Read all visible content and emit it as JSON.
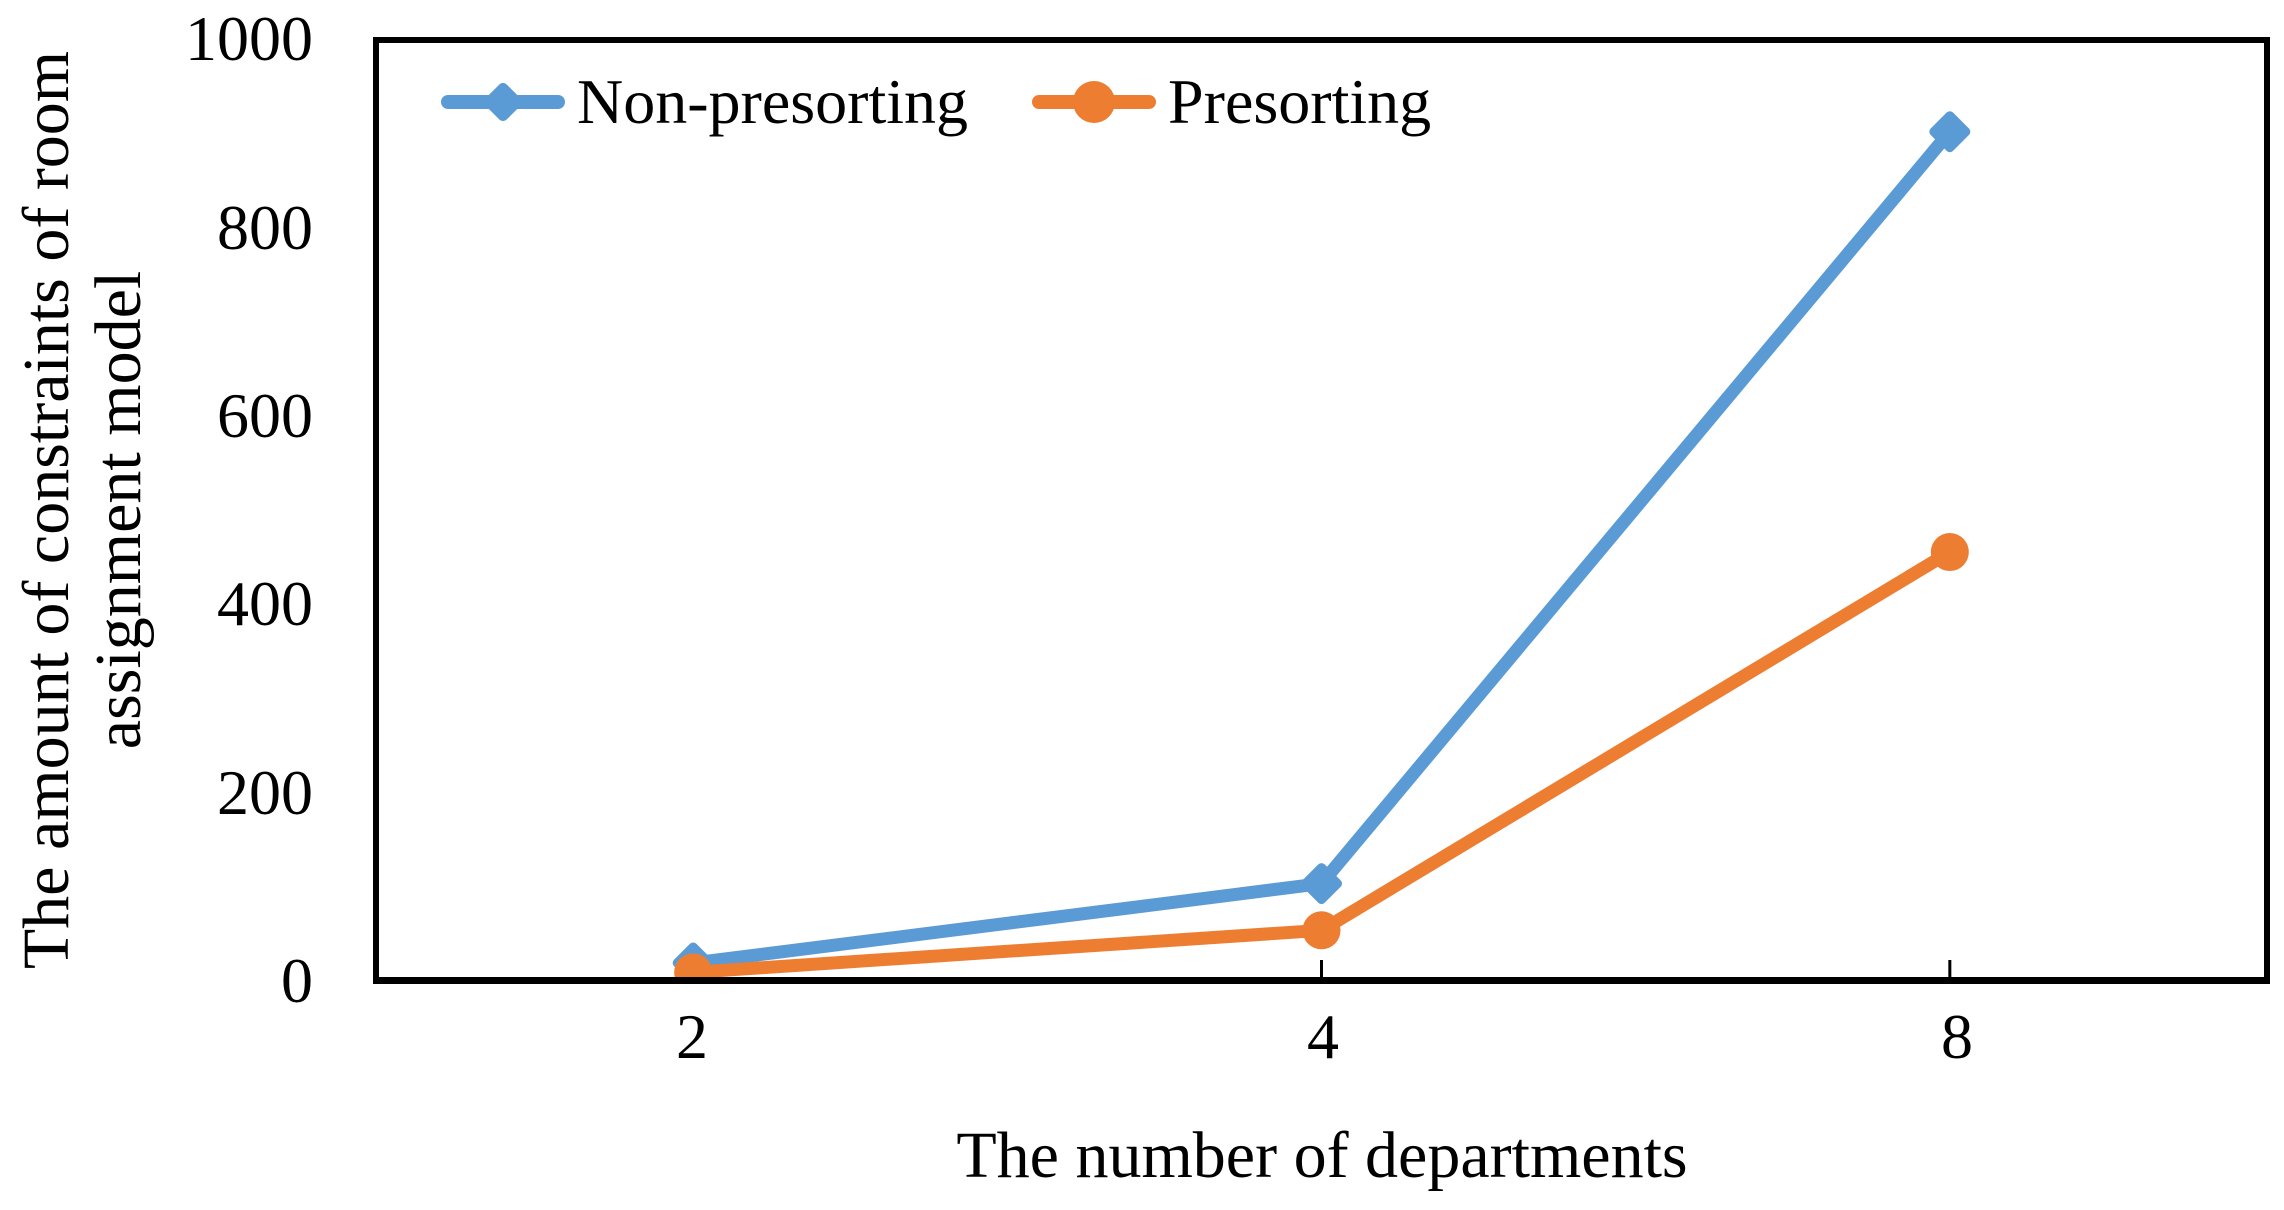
{
  "chart_data": {
    "type": "line",
    "categories": [
      "2",
      "4",
      "8"
    ],
    "series": [
      {
        "name": "Non-presorting",
        "values": [
          15,
          100,
          905
        ],
        "color": "#5B9BD5",
        "marker": "diamond"
      },
      {
        "name": "Presorting",
        "values": [
          5,
          50,
          455
        ],
        "color": "#ED7D31",
        "marker": "circle"
      }
    ],
    "xlabel": "The number of departments",
    "ylabel": "The amount of constraints of room assignment model",
    "ylabel_lines": [
      "The amount of constraints of room",
      "assignment model"
    ],
    "yticks": [
      "0",
      "200",
      "400",
      "600",
      "800",
      "1000"
    ],
    "ylim": [
      0,
      1000
    ],
    "grid": false,
    "legend_position": "top-inside",
    "plot_border_color": "#000000",
    "text_color": "#000000",
    "background": "#FFFFFF"
  }
}
